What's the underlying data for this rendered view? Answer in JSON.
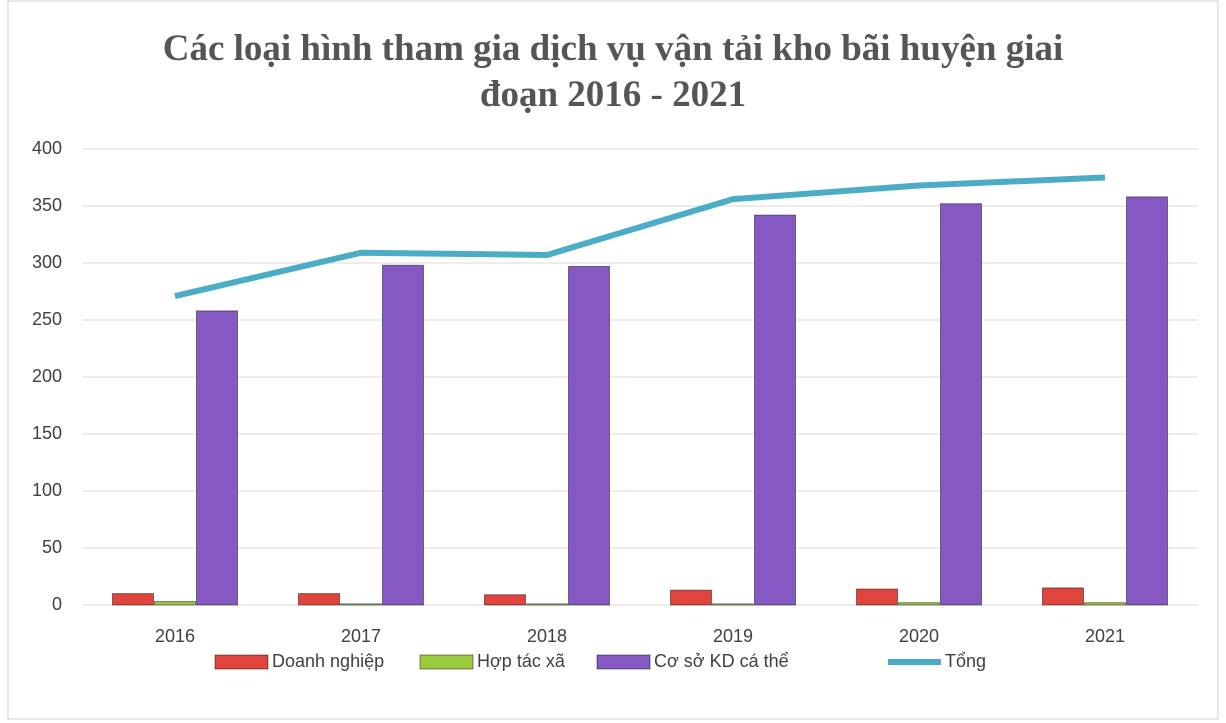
{
  "chart_data": {
    "type": "bar_line",
    "title": "Các loại hình tham gia dịch vụ vận tải kho bãi huyện giai đoạn 2016 - 2021",
    "categories": [
      "2016",
      "2017",
      "2018",
      "2019",
      "2020",
      "2021"
    ],
    "series": [
      {
        "name": "Doanh nghiệp",
        "color": "#e0443c",
        "kind": "bar",
        "values": [
          10,
          10,
          9,
          13,
          14,
          15
        ]
      },
      {
        "name": "Hợp tác xã",
        "color": "#9bcb3c",
        "kind": "bar",
        "values": [
          3,
          1,
          1,
          1,
          2,
          2
        ]
      },
      {
        "name": "Cơ sở KD cá thể",
        "color": "#8658c4",
        "kind": "bar",
        "values": [
          258,
          298,
          297,
          342,
          352,
          358
        ]
      },
      {
        "name": "Tổng",
        "color": "#4bacc6",
        "kind": "line",
        "values": [
          271,
          309,
          307,
          356,
          368,
          375
        ]
      }
    ],
    "ylim": [
      0,
      400
    ],
    "yticks": [
      0,
      50,
      100,
      150,
      200,
      250,
      300,
      350,
      400
    ],
    "grid": true,
    "legend": "bottom"
  }
}
